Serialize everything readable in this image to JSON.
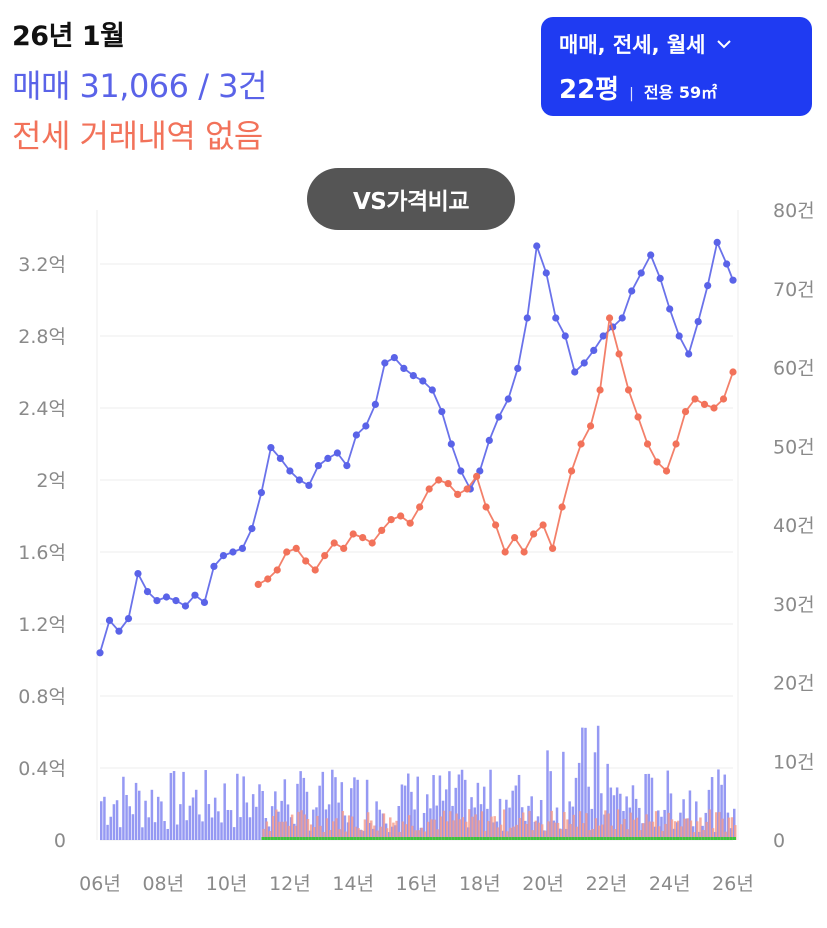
{
  "summary": {
    "date": "26년 1월",
    "sale": "매매 31,066 / 3건",
    "jeonse": "전세 거래내역 없음"
  },
  "filter": {
    "types": "매매, 전세, 월세",
    "pyeong": "22평",
    "area": "전용 59㎡"
  },
  "compare_button": "VS가격비교",
  "chart_data": {
    "type": "line",
    "y_left_ticks": [
      "0",
      "0.4억",
      "0.8억",
      "1.2억",
      "1.6억",
      "2억",
      "2.4억",
      "2.8억",
      "3.2억"
    ],
    "y_left_range": [
      0,
      3.5
    ],
    "y_left_unit": "억",
    "y_right_ticks": [
      "0",
      "10건",
      "20건",
      "30건",
      "40건",
      "50건",
      "60건",
      "70건",
      "80건"
    ],
    "y_right_range": [
      0,
      80
    ],
    "x_ticks": [
      "06년",
      "08년",
      "10년",
      "12년",
      "14년",
      "16년",
      "18년",
      "20년",
      "22년",
      "24년",
      "26년"
    ],
    "x_range": [
      2006,
      2026
    ],
    "colors": {
      "sale": "#5a63e8",
      "jeonse": "#f2725a",
      "volume_sale": "#7a80f0",
      "volume_jeonse": "#f59a8a",
      "volume_other": "#3cc43c"
    },
    "series": [
      {
        "key": "sale",
        "x": [
          2006.0,
          2006.3,
          2006.6,
          2006.9,
          2007.2,
          2007.5,
          2007.8,
          2008.1,
          2008.4,
          2008.7,
          2009.0,
          2009.3,
          2009.6,
          2009.9,
          2010.2,
          2010.5,
          2010.8,
          2011.1,
          2011.4,
          2011.7,
          2012.0,
          2012.3,
          2012.6,
          2012.9,
          2013.2,
          2013.5,
          2013.8,
          2014.1,
          2014.4,
          2014.7,
          2015.0,
          2015.3,
          2015.6,
          2015.9,
          2016.2,
          2016.5,
          2016.8,
          2017.1,
          2017.4,
          2017.7,
          2018.0,
          2018.3,
          2018.6,
          2018.9,
          2019.2,
          2019.5,
          2019.8,
          2020.1,
          2020.4,
          2020.7,
          2021.0,
          2021.3,
          2021.6,
          2021.9,
          2022.2,
          2022.5,
          2022.8,
          2023.1,
          2023.4,
          2023.7,
          2024.0,
          2024.3,
          2024.6,
          2024.9,
          2025.2,
          2025.5,
          2025.8,
          2026.0
        ],
        "y": [
          1.04,
          1.22,
          1.16,
          1.23,
          1.48,
          1.38,
          1.33,
          1.35,
          1.33,
          1.3,
          1.36,
          1.32,
          1.52,
          1.58,
          1.6,
          1.62,
          1.73,
          1.93,
          2.18,
          2.12,
          2.05,
          2.0,
          1.97,
          2.08,
          2.12,
          2.15,
          2.08,
          2.25,
          2.3,
          2.42,
          2.65,
          2.68,
          2.62,
          2.58,
          2.55,
          2.5,
          2.38,
          2.2,
          2.05,
          1.95,
          2.05,
          2.22,
          2.35,
          2.45,
          2.62,
          2.9,
          3.3,
          3.15,
          2.9,
          2.8,
          2.6,
          2.65,
          2.72,
          2.8,
          2.85,
          2.9,
          3.05,
          3.15,
          3.25,
          3.12,
          2.95,
          2.8,
          2.7,
          2.88,
          3.08,
          3.32,
          3.2,
          3.11
        ]
      },
      {
        "key": "jeonse",
        "x": [
          2011.0,
          2011.3,
          2011.6,
          2011.9,
          2012.2,
          2012.5,
          2012.8,
          2013.1,
          2013.4,
          2013.7,
          2014.0,
          2014.3,
          2014.6,
          2014.9,
          2015.2,
          2015.5,
          2015.8,
          2016.1,
          2016.4,
          2016.7,
          2017.0,
          2017.3,
          2017.6,
          2017.9,
          2018.2,
          2018.5,
          2018.8,
          2019.1,
          2019.4,
          2019.7,
          2020.0,
          2020.3,
          2020.6,
          2020.9,
          2021.2,
          2021.5,
          2021.8,
          2022.1,
          2022.4,
          2022.7,
          2023.0,
          2023.3,
          2023.6,
          2023.9,
          2024.2,
          2024.5,
          2024.8,
          2025.1,
          2025.4,
          2025.7,
          2026.0
        ],
        "y": [
          1.42,
          1.45,
          1.5,
          1.6,
          1.62,
          1.55,
          1.5,
          1.58,
          1.65,
          1.62,
          1.7,
          1.68,
          1.65,
          1.72,
          1.78,
          1.8,
          1.76,
          1.85,
          1.95,
          2.0,
          1.98,
          1.92,
          1.95,
          2.02,
          1.85,
          1.75,
          1.6,
          1.68,
          1.6,
          1.7,
          1.75,
          1.62,
          1.85,
          2.05,
          2.2,
          2.3,
          2.5,
          2.9,
          2.7,
          2.5,
          2.35,
          2.2,
          2.1,
          2.05,
          2.2,
          2.38,
          2.45,
          2.42,
          2.4,
          2.45,
          2.6
        ]
      }
    ]
  }
}
